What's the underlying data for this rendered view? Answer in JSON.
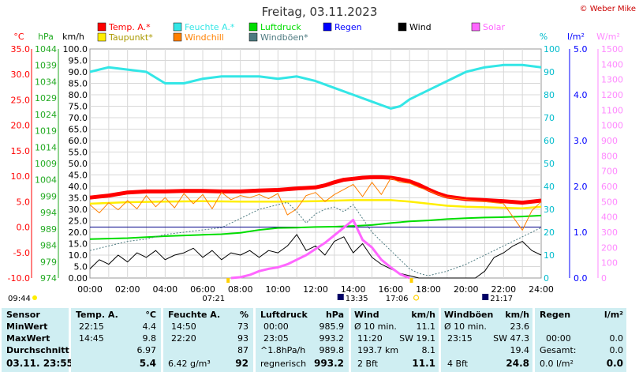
{
  "title": "Freitag, 03.11.2023",
  "copyright": "© Weber Mike",
  "legend": [
    {
      "label": "Temp. A.*",
      "color": "#ff0000"
    },
    {
      "label": "Feuchte A.*",
      "color": "#33e6e6"
    },
    {
      "label": "Luftdruck",
      "color": "#00dd00"
    },
    {
      "label": "Regen",
      "color": "#0000ff"
    },
    {
      "label": "Wind",
      "color": "#000000"
    },
    {
      "label": "Solar",
      "color": "#ff66ff"
    },
    {
      "label": "Taupunkt*",
      "color": "#ffee00"
    },
    {
      "label": "Windchill",
      "color": "#ff8000"
    },
    {
      "label": "Windböen*",
      "color": "#4d7a80"
    }
  ],
  "axes": {
    "temp": {
      "unit": "°C",
      "ticks": [
        "35.0",
        "30.0",
        "25.0",
        "20.0",
        "15.0",
        "10.0",
        "5.0",
        "0.0",
        "-5.0",
        "-10.0"
      ],
      "color": "#ff0000"
    },
    "pressure": {
      "unit": "hPa",
      "ticks": [
        "1044",
        "1039",
        "1034",
        "1029",
        "1024",
        "1019",
        "1014",
        "1009",
        "1004",
        "999",
        "994",
        "989",
        "984",
        "979",
        "974"
      ],
      "color": "#22aa22"
    },
    "wind": {
      "unit": "km/h",
      "ticks": [
        "100.0",
        "95.0",
        "90.0",
        "85.0",
        "80.0",
        "75.0",
        "70.0",
        "65.0",
        "60.0",
        "55.0",
        "50.0",
        "45.0",
        "40.0",
        "35.0",
        "30.0",
        "25.0",
        "20.0",
        "15.0",
        "10.0",
        "5.0",
        "0.00"
      ],
      "color": "#000000"
    },
    "humidity": {
      "unit": "%",
      "ticks": [
        "100",
        "90",
        "80",
        "70",
        "60",
        "50",
        "40",
        "30",
        "20",
        "10",
        "0"
      ],
      "color": "#00bbcc"
    },
    "rain": {
      "unit": "l/m²",
      "ticks": [
        "5.0",
        "4.0",
        "3.0",
        "2.0",
        "1.0",
        "0.0"
      ],
      "color": "#0000ff"
    },
    "solar": {
      "unit": "W/m²",
      "ticks": [
        "1500",
        "1400",
        "1300",
        "1200",
        "1100",
        "1000",
        "900",
        "800",
        "700",
        "600",
        "500",
        "400",
        "300",
        "200",
        "100",
        "0"
      ],
      "color": "#ff88ff"
    },
    "time": {
      "ticks": [
        "00:00",
        "02:00",
        "04:00",
        "06:00",
        "08:00",
        "10:00",
        "12:00",
        "14:00",
        "16:00",
        "18:00",
        "20:00",
        "22:00",
        "24:00"
      ]
    }
  },
  "sun_moon": {
    "sunrise": "07:21",
    "sunset": "17:06",
    "moonrise": "21:17",
    "moonset": "13:35",
    "daylight_start": "09:44"
  },
  "chart_data": {
    "type": "line",
    "x_unit": "hour",
    "xlim": [
      0,
      24
    ],
    "series": [
      {
        "name": "Temp. A.*",
        "axis": "°C",
        "color": "#ff0000",
        "x": [
          0,
          1,
          2,
          3,
          4,
          5,
          6,
          7,
          8,
          9,
          10,
          11,
          12,
          12.5,
          13,
          13.5,
          14,
          14.5,
          15,
          15.5,
          16,
          16.5,
          17,
          17.5,
          18,
          18.5,
          19,
          20,
          21,
          22,
          23,
          24
        ],
        "y": [
          5.8,
          6.2,
          6.8,
          7.0,
          7.0,
          7.1,
          7.1,
          7.0,
          7.0,
          7.2,
          7.3,
          7.6,
          7.8,
          8.2,
          8.8,
          9.3,
          9.5,
          9.7,
          9.8,
          9.8,
          9.7,
          9.4,
          9.0,
          8.3,
          7.4,
          6.6,
          6.0,
          5.5,
          5.3,
          5.1,
          4.8,
          5.2
        ]
      },
      {
        "name": "Feuchte A.*",
        "axis": "%",
        "color": "#33e6e6",
        "x": [
          0,
          1,
          2,
          3,
          4,
          5,
          6,
          7,
          8,
          9,
          10,
          11,
          12,
          13,
          14,
          15,
          16,
          16.5,
          17,
          18,
          19,
          20,
          21,
          22,
          23,
          24
        ],
        "y": [
          90,
          92,
          91,
          90,
          85,
          85,
          87,
          88,
          88,
          88,
          87,
          88,
          86,
          83,
          80,
          77,
          74,
          75,
          78,
          82,
          86,
          90,
          92,
          93,
          93,
          92
        ]
      },
      {
        "name": "Luftdruck",
        "axis": "hPa",
        "color": "#00dd00",
        "x": [
          0,
          2,
          4,
          6,
          7,
          8,
          9,
          10,
          11,
          12,
          13,
          14,
          15,
          16,
          17,
          18,
          19,
          20,
          21,
          22,
          23,
          24
        ],
        "y": [
          985.9,
          986.2,
          986.8,
          987.2,
          987.4,
          987.8,
          988.7,
          989.3,
          989.4,
          989.6,
          989.7,
          989.9,
          990.2,
          990.8,
          991.3,
          991.6,
          992.0,
          992.3,
          992.5,
          992.6,
          992.8,
          993.1
        ]
      },
      {
        "name": "Taupunkt*",
        "axis": "°C",
        "color": "#ffee00",
        "x": [
          0,
          2,
          4,
          6,
          8,
          10,
          12,
          14,
          16,
          17,
          18,
          19,
          20,
          21,
          22,
          23,
          24
        ],
        "y": [
          4.6,
          4.9,
          5.0,
          5.1,
          5.0,
          5.0,
          5.1,
          5.3,
          5.3,
          5.0,
          4.6,
          4.2,
          4.0,
          3.9,
          3.8,
          3.7,
          4.0
        ]
      },
      {
        "name": "Windchill",
        "axis": "°C",
        "color": "#ff8000",
        "x": [
          0,
          0.5,
          1,
          1.5,
          2,
          2.5,
          3,
          3.5,
          4,
          4.5,
          5,
          5.5,
          6,
          6.5,
          7,
          7.5,
          8,
          8.5,
          9,
          9.5,
          10,
          10.5,
          11,
          11.5,
          12,
          12.5,
          13,
          13.5,
          14,
          14.5,
          15,
          15.5,
          16,
          16.5,
          17,
          17.5,
          18,
          18.5,
          19,
          19.5,
          20,
          20.5,
          21,
          21.5,
          22,
          22.5,
          23,
          23.5,
          24
        ],
        "y": [
          4.4,
          2.8,
          4.8,
          3.4,
          5.2,
          3.6,
          6.2,
          4.0,
          5.8,
          3.8,
          6.6,
          4.6,
          6.4,
          3.6,
          6.8,
          5.4,
          6.2,
          5.8,
          6.4,
          5.6,
          6.6,
          2.4,
          3.6,
          6.2,
          6.8,
          5.0,
          6.4,
          7.4,
          8.4,
          6.0,
          8.8,
          6.4,
          9.6,
          8.8,
          8.6,
          7.8,
          7.2,
          6.4,
          5.8,
          5.6,
          5.4,
          5.2,
          5.0,
          4.8,
          4.6,
          2.0,
          -0.6,
          3.2,
          5.0
        ]
      },
      {
        "name": "Windböen*",
        "axis": "km/h",
        "color": "#4d7a80",
        "x": [
          0,
          1,
          2,
          3,
          4,
          5,
          6,
          7,
          8,
          9,
          10,
          10.5,
          11,
          11.5,
          12,
          12.5,
          13,
          13.5,
          14,
          14.5,
          15,
          15.5,
          16,
          16.5,
          17,
          17.5,
          18,
          19,
          20,
          21,
          22,
          23,
          24
        ],
        "y": [
          12,
          14,
          16,
          17,
          19,
          20,
          21,
          22,
          26,
          30,
          32,
          33,
          29,
          24,
          28,
          30,
          31,
          29,
          32,
          26,
          20,
          16,
          12,
          8,
          4,
          2,
          1,
          3,
          6,
          10,
          14,
          18,
          22
        ]
      },
      {
        "name": "Wind",
        "axis": "km/h",
        "color": "#000000",
        "x": [
          0,
          0.5,
          1,
          1.5,
          2,
          2.5,
          3,
          3.5,
          4,
          4.5,
          5,
          5.5,
          6,
          6.5,
          7,
          7.5,
          8,
          8.5,
          9,
          9.5,
          10,
          10.5,
          11,
          11.5,
          12,
          12.5,
          13,
          13.5,
          14,
          14.5,
          15,
          15.5,
          16,
          16.5,
          17,
          17.5,
          18,
          18.5,
          19,
          19.5,
          20,
          20.5,
          21,
          21.5,
          22,
          22.5,
          23,
          23.5,
          24
        ],
        "y": [
          4,
          8,
          6,
          10,
          7,
          11,
          9,
          12,
          8,
          10,
          11,
          13,
          9,
          12,
          8,
          11,
          10,
          12,
          9,
          12,
          11,
          14,
          19,
          12,
          14,
          10,
          16,
          18,
          11,
          15,
          9,
          6,
          4,
          2,
          1,
          0,
          0,
          0,
          0,
          0,
          0,
          0,
          3,
          9,
          11,
          14,
          16,
          12,
          10
        ]
      },
      {
        "name": "Solar",
        "axis": "W/m²",
        "color": "#ff66ff",
        "x": [
          7.5,
          8,
          8.5,
          9,
          9.5,
          10,
          10.5,
          11,
          11.5,
          12,
          12.5,
          13,
          13.5,
          14,
          14.5,
          15,
          15.5,
          16,
          16.5,
          17
        ],
        "y": [
          0,
          5,
          20,
          45,
          60,
          70,
          90,
          120,
          150,
          190,
          230,
          280,
          330,
          380,
          250,
          200,
          120,
          70,
          25,
          0
        ]
      }
    ],
    "rain": []
  },
  "stats": {
    "sensor": {
      "header": "Sensor",
      "rows": [
        "MinWert",
        "MaxWert",
        "Durchschnitt"
      ],
      "current": "03.11. 23:55"
    },
    "temp": {
      "header": "Temp. A.",
      "unit": "°C",
      "min_time": "22:15",
      "min": "4.4",
      "max_time": "14:45",
      "max": "9.8",
      "avg": "6.97",
      "current": "5.4"
    },
    "humidity": {
      "header": "Feuchte A.",
      "unit": "%",
      "min_time": "14:50",
      "min": "73",
      "max_time": "22:20",
      "max": "93",
      "avg": "87",
      "extra": "6.42 g/m³",
      "current": "92"
    },
    "pressure": {
      "header": "Luftdruck",
      "unit": "hPa",
      "min_time": "00:00",
      "min": "985.9",
      "max_time": "23:05",
      "max": "993.2",
      "trend": "^1.8hPa/h",
      "avg": "989.8",
      "state": "regnerisch",
      "current": "993.2"
    },
    "wind": {
      "header": "Wind",
      "unit": "km/h",
      "r1_label": "Ø 10 min.",
      "r1_val": "11.1",
      "r2_time": "11:20",
      "r2_dir": "SW 19.1",
      "r3_label": "193.7 km",
      "r3_val": "8.1",
      "r4_label": "2 Bft",
      "current": "11.1"
    },
    "gust": {
      "header": "Windböen",
      "unit": "km/h",
      "r1_label": "Ø 10 min.",
      "r1_val": "23.6",
      "r2_time": "23:15",
      "r2_dir": "SW 47.3",
      "r3_val": "19.4",
      "r4_label": "4 Bft",
      "current": "24.8"
    },
    "rain": {
      "header": "Regen",
      "unit": "l/m²",
      "r2_time": "00:00",
      "r2_val": "0.0",
      "r3_label": "Gesamt:",
      "r3_val": "0.0",
      "r4_label": "0.0 l/m²",
      "current": "0.0"
    }
  }
}
